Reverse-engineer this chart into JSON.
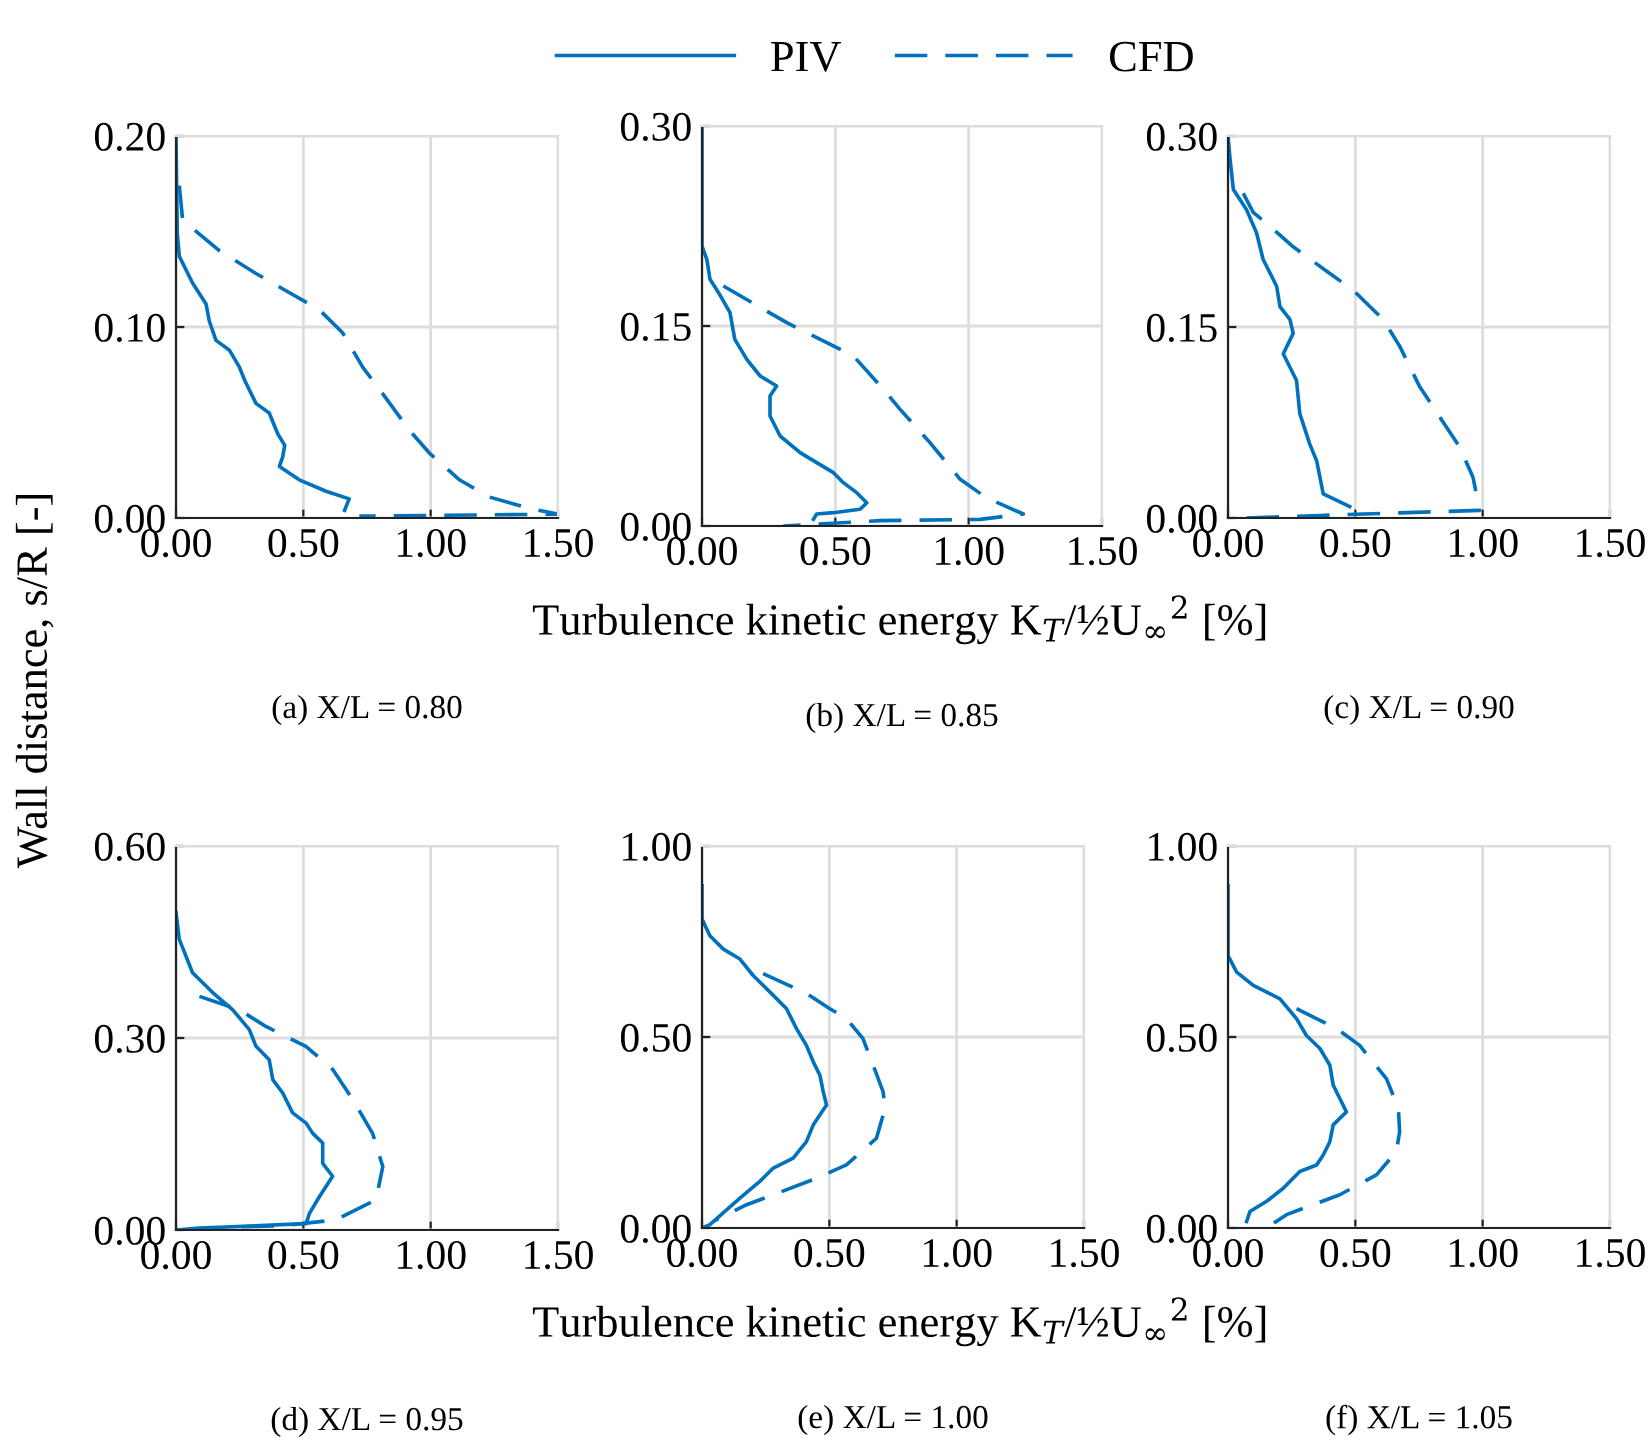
{
  "chart_data": [
    {
      "type": "line",
      "title": "(a) X/L = 0.80",
      "ylabel": "Wall distance, s/R [-]",
      "legend": "top",
      "grid": true,
      "xlim": [
        0,
        1.5
      ],
      "ylim": [
        0,
        0.2
      ],
      "xticks": [
        {
          "value": 0,
          "label": "0.00"
        },
        {
          "value": 0.5,
          "label": "0.50"
        },
        {
          "value": 1,
          "label": "1.00"
        },
        {
          "value": 1.5,
          "label": "1.50"
        }
      ],
      "yticks": [
        {
          "value": 0,
          "label": "0.00"
        },
        {
          "value": 0.1,
          "label": "0.10"
        },
        {
          "value": 0.2,
          "label": "0.20"
        }
      ],
      "series": [
        {
          "name": "PIV",
          "color": "#0072bd",
          "line_style": "solid",
          "x": [
            0,
            0.005,
            0.013,
            0.065,
            0.118,
            0.131,
            0.157,
            0.209,
            0.249,
            0.27,
            0.314,
            0.366,
            0.4,
            0.427,
            0.419,
            0.406,
            0.484,
            0.589,
            0.68,
            0.668,
            0.662
          ],
          "values": [
            0.2,
            0.149,
            0.137,
            0.123,
            0.112,
            0.103,
            0.093,
            0.088,
            0.079,
            0.072,
            0.06,
            0.055,
            0.044,
            0.038,
            0.032,
            0.027,
            0.02,
            0.014,
            0.01,
            0.006,
            0.004
          ]
        },
        {
          "name": "CFD",
          "color": "#0072bd",
          "line_style": "dashed",
          "x": [
            0.013,
            0.026,
            0.071,
            0.17,
            0.314,
            0.432,
            0.563,
            0.654,
            0.733,
            0.812,
            0.916,
            0.995,
            1.113,
            1.23,
            1.387,
            1.5,
            0.72
          ],
          "values": [
            0.174,
            0.156,
            0.151,
            0.14,
            0.128,
            0.119,
            0.109,
            0.097,
            0.079,
            0.065,
            0.046,
            0.034,
            0.02,
            0.011,
            0.005,
            0.002,
            0.001
          ]
        }
      ]
    },
    {
      "type": "line",
      "title": "(b) X/L = 0.85",
      "xlabel": "Turbulence kinetic energy K$_{T}$/½U$_{∞}$$^{2}$ [%]",
      "grid": true,
      "xlim": [
        0,
        1.5
      ],
      "ylim": [
        0,
        0.3
      ],
      "xticks": [
        {
          "value": 0,
          "label": "0.00"
        },
        {
          "value": 0.5,
          "label": "0.50"
        },
        {
          "value": 1,
          "label": "1.00"
        },
        {
          "value": 1.5,
          "label": "1.50"
        }
      ],
      "yticks": [
        {
          "value": 0,
          "label": "0.00"
        },
        {
          "value": 0.15,
          "label": "0.15"
        },
        {
          "value": 0.3,
          "label": "0.30"
        }
      ],
      "series": [
        {
          "color": "#0072bd",
          "line_style": "solid",
          "x": [
            0,
            0,
            0.018,
            0.03,
            0.068,
            0.105,
            0.123,
            0.168,
            0.218,
            0.28,
            0.255,
            0.255,
            0.293,
            0.368,
            0.43,
            0.493,
            0.53,
            0.58,
            0.618,
            0.593,
            0.493,
            0.43,
            0.418
          ],
          "values": [
            0.3,
            0.21,
            0.2,
            0.185,
            0.173,
            0.16,
            0.14,
            0.125,
            0.1125,
            0.105,
            0.0975,
            0.0825,
            0.0675,
            0.055,
            0.0475,
            0.04,
            0.0325,
            0.025,
            0.0175,
            0.0125,
            0.01,
            0.009,
            0.005
          ]
        },
        {
          "color": "#0072bd",
          "line_style": "dashed",
          "x": [
            0.08,
            0.218,
            0.318,
            0.468,
            0.568,
            0.68,
            0.743,
            0.855,
            0.968,
            1.068,
            1.205,
            1.043,
            0.668,
            0.305
          ],
          "values": [
            0.18,
            0.164,
            0.1525,
            0.1375,
            0.1275,
            0.1025,
            0.0875,
            0.0625,
            0.035,
            0.021,
            0.009,
            0.005,
            0.004,
            0
          ]
        }
      ]
    },
    {
      "type": "line",
      "title": "(c) X/L = 0.90",
      "grid": true,
      "xlim": [
        0,
        1.5
      ],
      "ylim": [
        0,
        0.3
      ],
      "xticks": [
        {
          "value": 0,
          "label": "0.00"
        },
        {
          "value": 0.5,
          "label": "0.50"
        },
        {
          "value": 1,
          "label": "1.00"
        },
        {
          "value": 1.5,
          "label": "1.50"
        }
      ],
      "yticks": [
        {
          "value": 0,
          "label": "0.00"
        },
        {
          "value": 0.15,
          "label": "0.15"
        },
        {
          "value": 0.3,
          "label": "0.30"
        }
      ],
      "series": [
        {
          "color": "#0072bd",
          "line_style": "solid",
          "x": [
            0,
            0.008,
            0.021,
            0.073,
            0.112,
            0.138,
            0.191,
            0.204,
            0.243,
            0.256,
            0.217,
            0.269,
            0.282,
            0.321,
            0.348,
            0.374,
            0.478
          ],
          "values": [
            0.3,
            0.282,
            0.258,
            0.242,
            0.224,
            0.203,
            0.182,
            0.166,
            0.156,
            0.145,
            0.129,
            0.108,
            0.082,
            0.058,
            0.045,
            0.019,
            0.009
          ]
        },
        {
          "color": "#0072bd",
          "line_style": "dashed",
          "x": [
            0.06,
            0.099,
            0.165,
            0.256,
            0.4,
            0.491,
            0.609,
            0.674,
            0.753,
            0.909,
            0.962,
            0.975,
            0.988,
            0.674,
            0.361,
            0.073
          ],
          "values": [
            0.255,
            0.24,
            0.229,
            0.213,
            0.192,
            0.179,
            0.156,
            0.135,
            0.103,
            0.056,
            0.032,
            0.019,
            0.006,
            0.004,
            0.002,
            0
          ]
        }
      ]
    },
    {
      "type": "line",
      "title": "(d) X/L = 0.95",
      "grid": true,
      "xlim": [
        0,
        1.5
      ],
      "ylim": [
        0,
        0.6
      ],
      "xticks": [
        {
          "value": 0,
          "label": "0.00"
        },
        {
          "value": 0.5,
          "label": "0.50"
        },
        {
          "value": 1,
          "label": "1.00"
        },
        {
          "value": 1.5,
          "label": "1.50"
        }
      ],
      "yticks": [
        {
          "value": 0,
          "label": "0.00"
        },
        {
          "value": 0.3,
          "label": "0.30"
        },
        {
          "value": 0.6,
          "label": "0.60"
        }
      ],
      "series": [
        {
          "color": "#0072bd",
          "line_style": "solid",
          "x": [
            0,
            0.013,
            0.065,
            0.144,
            0.223,
            0.288,
            0.314,
            0.366,
            0.38,
            0.419,
            0.458,
            0.511,
            0.537,
            0.576,
            0.576,
            0.615,
            0.589,
            0.563,
            0.524,
            0.511,
            0.092,
            0
          ],
          "values": [
            0.496,
            0.454,
            0.402,
            0.371,
            0.344,
            0.313,
            0.287,
            0.266,
            0.235,
            0.214,
            0.183,
            0.167,
            0.151,
            0.136,
            0.104,
            0.084,
            0.068,
            0.052,
            0.026,
            0.01,
            0.003,
            0
          ]
        },
        {
          "color": "#0072bd",
          "line_style": "dashed",
          "x": [
            0.092,
            0.249,
            0.353,
            0.51,
            0.615,
            0.694,
            0.772,
            0.812,
            0.785,
            0.628,
            0.432,
            0.249,
            0.026
          ],
          "values": [
            0.365,
            0.344,
            0.318,
            0.287,
            0.251,
            0.204,
            0.151,
            0.099,
            0.047,
            0.016,
            0.007,
            0.005,
            0
          ]
        }
      ]
    },
    {
      "type": "line",
      "title": "(e) X/L = 1.00",
      "xlabel": "Turbulence kinetic energy K$_{T}$/½U$_{∞}$$^{2}$ [%]",
      "grid": true,
      "xlim": [
        0,
        1.5
      ],
      "ylim": [
        0,
        1
      ],
      "xticks": [
        {
          "value": 0,
          "label": "0.00"
        },
        {
          "value": 0.5,
          "label": "0.50"
        },
        {
          "value": 1,
          "label": "1.00"
        },
        {
          "value": 1.5,
          "label": "1.50"
        }
      ],
      "yticks": [
        {
          "value": 0,
          "label": "0.00"
        },
        {
          "value": 0.5,
          "label": "0.50"
        },
        {
          "value": 1,
          "label": "1.00"
        }
      ],
      "series": [
        {
          "color": "#0072bd",
          "line_style": "solid",
          "x": [
            0,
            0,
            0.031,
            0.084,
            0.149,
            0.201,
            0.28,
            0.332,
            0.371,
            0.41,
            0.437,
            0.463,
            0.476,
            0.489,
            0.437,
            0.41,
            0.358,
            0.28,
            0.227,
            0.149,
            0.031,
            0
          ],
          "values": [
            0.896,
            0.809,
            0.765,
            0.73,
            0.704,
            0.661,
            0.609,
            0.574,
            0.522,
            0.478,
            0.435,
            0.4,
            0.357,
            0.322,
            0.27,
            0.226,
            0.183,
            0.157,
            0.122,
            0.078,
            0.009,
            0
          ]
        },
        {
          "color": "#0072bd",
          "line_style": "dashed",
          "x": [
            0.24,
            0.41,
            0.502,
            0.567,
            0.632,
            0.672,
            0.711,
            0.719,
            0.685,
            0.567,
            0.449,
            0.28,
            0.175,
            0.044
          ],
          "values": [
            0.666,
            0.614,
            0.574,
            0.548,
            0.496,
            0.426,
            0.357,
            0.313,
            0.235,
            0.165,
            0.13,
            0.087,
            0.061,
            0.017
          ]
        }
      ]
    },
    {
      "type": "line",
      "title": "(f) X/L = 1.05",
      "grid": true,
      "xlim": [
        0,
        1.5
      ],
      "ylim": [
        0,
        1
      ],
      "xticks": [
        {
          "value": 0,
          "label": "0.00"
        },
        {
          "value": 0.5,
          "label": "0.50"
        },
        {
          "value": 1,
          "label": "1.00"
        },
        {
          "value": 1.5,
          "label": "1.50"
        }
      ],
      "yticks": [
        {
          "value": 0,
          "label": "0.00"
        },
        {
          "value": 0.5,
          "label": "0.50"
        },
        {
          "value": 1,
          "label": "1.00"
        }
      ],
      "series": [
        {
          "color": "#0072bd",
          "line_style": "solid",
          "x": [
            0,
            0,
            0.034,
            0.099,
            0.204,
            0.269,
            0.308,
            0.361,
            0.4,
            0.413,
            0.439,
            0.465,
            0.413,
            0.4,
            0.374,
            0.348,
            0.282,
            0.217,
            0.152,
            0.086,
            0.073
          ],
          "values": [
            0.896,
            0.713,
            0.67,
            0.635,
            0.6,
            0.548,
            0.504,
            0.47,
            0.426,
            0.374,
            0.339,
            0.304,
            0.27,
            0.226,
            0.191,
            0.165,
            0.148,
            0.104,
            0.07,
            0.043,
            0.017
          ]
        },
        {
          "color": "#0072bd",
          "line_style": "dashed",
          "x": [
            0.269,
            0.426,
            0.517,
            0.622,
            0.669,
            0.674,
            0.661,
            0.583,
            0.439,
            0.334,
            0.23,
            0.178
          ],
          "values": [
            0.574,
            0.522,
            0.478,
            0.391,
            0.313,
            0.252,
            0.2,
            0.139,
            0.087,
            0.061,
            0.035,
            0.012
          ]
        }
      ]
    }
  ]
}
